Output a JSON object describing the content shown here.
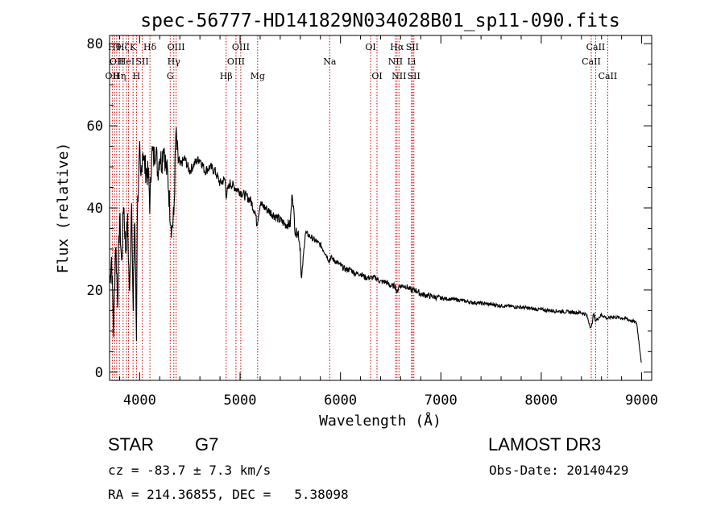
{
  "chart_data": {
    "type": "line",
    "title": "spec-56777-HD141829N034028B01_sp11-090.fits",
    "xlabel": "Wavelength (Å)",
    "ylabel": "Flux (relative)",
    "xlim": [
      3700,
      9100
    ],
    "ylim": [
      -2,
      82
    ],
    "xticks": [
      4000,
      5000,
      6000,
      7000,
      8000,
      9000
    ],
    "yticks": [
      0,
      20,
      40,
      60,
      80
    ],
    "line_color": "#000000",
    "marker_color": "#cc0000",
    "spectrum": {
      "name": "flux",
      "x": [
        3700,
        3720,
        3740,
        3760,
        3780,
        3800,
        3820,
        3840,
        3860,
        3880,
        3900,
        3920,
        3935,
        3950,
        3960,
        3968,
        3975,
        3990,
        4000,
        4010,
        4030,
        4050,
        4070,
        4090,
        4102,
        4120,
        4140,
        4160,
        4180,
        4200,
        4220,
        4240,
        4260,
        4280,
        4300,
        4320,
        4340,
        4360,
        4380,
        4400,
        4420,
        4450,
        4480,
        4500,
        4550,
        4600,
        4650,
        4700,
        4750,
        4800,
        4850,
        4861,
        4900,
        4950,
        5000,
        5050,
        5100,
        5150,
        5167,
        5200,
        5250,
        5300,
        5350,
        5400,
        5450,
        5500,
        5520,
        5550,
        5580,
        5600,
        5610,
        5650,
        5700,
        5750,
        5800,
        5850,
        5890,
        5900,
        5950,
        6000,
        6050,
        6100,
        6150,
        6200,
        6250,
        6300,
        6350,
        6400,
        6450,
        6500,
        6550,
        6563,
        6580,
        6600,
        6650,
        6700,
        6750,
        6800,
        6900,
        7000,
        7100,
        7200,
        7300,
        7400,
        7500,
        7600,
        7700,
        7800,
        7900,
        8000,
        8100,
        8200,
        8300,
        8400,
        8450,
        8498,
        8520,
        8542,
        8600,
        8662,
        8700,
        8800,
        8850,
        8900,
        8950,
        9000
      ],
      "y": [
        22,
        28,
        10,
        32,
        18,
        38,
        26,
        42,
        30,
        36,
        18,
        44,
        12,
        40,
        22,
        8,
        38,
        48,
        53,
        45,
        55,
        50,
        49,
        47,
        40,
        54,
        52,
        55,
        49,
        53,
        51,
        56,
        50,
        48,
        40,
        35,
        38,
        58,
        52,
        50,
        51,
        52,
        50,
        49,
        51,
        52,
        49,
        50,
        49,
        46,
        47,
        43,
        46,
        45,
        44,
        43,
        42,
        39,
        36,
        41,
        40,
        39,
        38,
        37,
        36,
        36,
        44,
        34,
        34,
        30,
        22,
        34,
        33,
        32,
        31,
        29,
        27,
        28,
        27,
        26,
        25,
        25,
        24,
        24,
        23,
        23,
        23,
        22,
        22,
        21,
        21,
        19,
        21,
        21,
        21,
        20,
        20,
        19,
        18.5,
        18,
        17.8,
        17.5,
        17,
        16.8,
        16.5,
        16.2,
        16,
        15.8,
        15.5,
        15.2,
        15,
        14.8,
        14.6,
        14.5,
        14,
        10.5,
        14.2,
        12.5,
        14,
        13,
        13.5,
        13.2,
        13,
        12.5,
        12,
        2
      ]
    },
    "line_markers": [
      {
        "wavelength": 3727,
        "label": "OII",
        "row": 2
      },
      {
        "wavelength": 3750,
        "label": "Hθ",
        "row": 0
      },
      {
        "wavelength": 3771,
        "label": "OII",
        "row": 1
      },
      {
        "wavelength": 3798,
        "label": "Hη",
        "row": 2
      },
      {
        "wavelength": 3835,
        "label": "Hζ",
        "row": 0
      },
      {
        "wavelength": 3869,
        "label": "HeI",
        "row": 1
      },
      {
        "wavelength": 3889,
        "label": "",
        "row": 2
      },
      {
        "wavelength": 3934,
        "label": "K",
        "row": 0
      },
      {
        "wavelength": 3968,
        "label": "H",
        "row": 2
      },
      {
        "wavelength": 4026,
        "label": "SII",
        "row": 1
      },
      {
        "wavelength": 4102,
        "label": "Hδ",
        "row": 0
      },
      {
        "wavelength": 4304,
        "label": "G",
        "row": 2
      },
      {
        "wavelength": 4340,
        "label": "Hγ",
        "row": 1
      },
      {
        "wavelength": 4363,
        "label": "OIII",
        "row": 0
      },
      {
        "wavelength": 4861,
        "label": "Hβ",
        "row": 2
      },
      {
        "wavelength": 4959,
        "label": "OIII",
        "row": 1
      },
      {
        "wavelength": 5007,
        "label": "OIII",
        "row": 0
      },
      {
        "wavelength": 5175,
        "label": "Mg",
        "row": 2
      },
      {
        "wavelength": 5893,
        "label": "Na",
        "row": 1
      },
      {
        "wavelength": 6300,
        "label": "OI",
        "row": 0
      },
      {
        "wavelength": 6364,
        "label": "OI",
        "row": 2
      },
      {
        "wavelength": 6548,
        "label": "NII",
        "row": 1
      },
      {
        "wavelength": 6563,
        "label": "Hα",
        "row": 0
      },
      {
        "wavelength": 6583,
        "label": "NII",
        "row": 2
      },
      {
        "wavelength": 6708,
        "label": "Li",
        "row": 1
      },
      {
        "wavelength": 6716,
        "label": "SII",
        "row": 0
      },
      {
        "wavelength": 6731,
        "label": "SII",
        "row": 2
      },
      {
        "wavelength": 8498,
        "label": "CaII",
        "row": 1
      },
      {
        "wavelength": 8542,
        "label": "CaII",
        "row": 0
      },
      {
        "wavelength": 8662,
        "label": "CaII",
        "row": 2
      }
    ]
  },
  "info": {
    "class_label": "STAR",
    "subclass": "G7",
    "survey": "LAMOST DR3",
    "velocity": "cz = -83.7 ± 7.3 km/s",
    "obs_date": "Obs-Date: 20140429",
    "coords": "RA = 214.36855, DEC =   5.38098"
  }
}
